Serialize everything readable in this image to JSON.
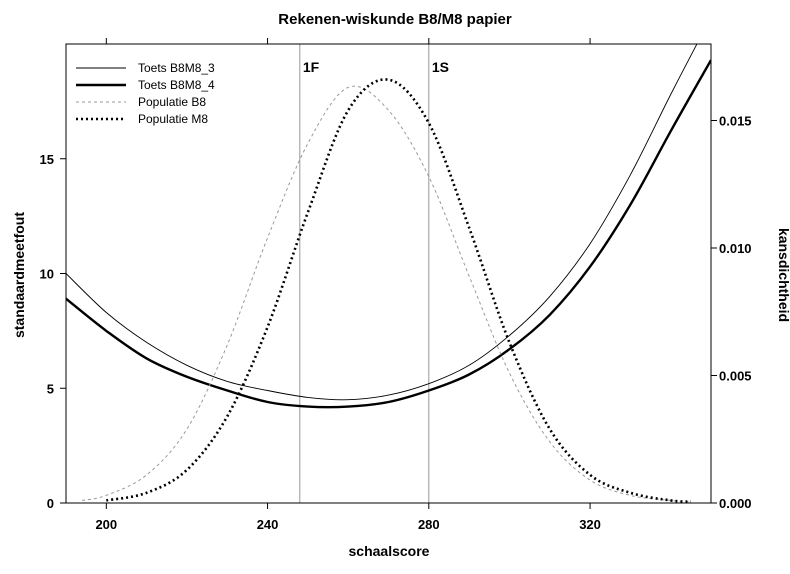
{
  "chart_data": {
    "type": "line",
    "title": "Rekenen-wiskunde B8/M8 papier",
    "xlabel": "schaalscore",
    "ylabel_left": "standaardmeetfout",
    "ylabel_right": "kansdichtheid",
    "xlim": [
      190,
      350
    ],
    "ylim_left": [
      0,
      20
    ],
    "ylim_right": [
      0,
      0.018
    ],
    "x_ticks": [
      200,
      240,
      280,
      320
    ],
    "x_tick_labels": [
      "200",
      "240",
      "280",
      "320"
    ],
    "y_left_ticks": [
      0,
      5,
      10,
      15
    ],
    "y_left_tick_labels": [
      "0",
      "5",
      "10",
      "15"
    ],
    "y_right_ticks": [
      0,
      0.005,
      0.01,
      0.015
    ],
    "y_right_tick_labels": [
      "0.000",
      "0.005",
      "0.010",
      "0.015"
    ],
    "grid": false,
    "legend_position": "top-left",
    "reference_lines": [
      {
        "x": 248,
        "label": "1F"
      },
      {
        "x": 280,
        "label": "1S"
      }
    ],
    "series": [
      {
        "name": "Toets B8M8_3",
        "axis": "left",
        "style": "thin-solid",
        "x": [
          190,
          200,
          210,
          220,
          230,
          240,
          250,
          260,
          270,
          280,
          290,
          300,
          310,
          320,
          330,
          340,
          348
        ],
        "y": [
          10.0,
          8.3,
          7.0,
          6.0,
          5.3,
          4.9,
          4.6,
          4.5,
          4.7,
          5.2,
          6.0,
          7.3,
          9.0,
          11.3,
          14.3,
          17.8,
          20.5
        ]
      },
      {
        "name": "Toets B8M8_4",
        "axis": "left",
        "style": "thick-solid",
        "x": [
          190,
          200,
          210,
          220,
          230,
          240,
          250,
          260,
          270,
          280,
          290,
          300,
          310,
          320,
          330,
          340,
          350
        ],
        "y": [
          8.9,
          7.5,
          6.3,
          5.5,
          4.9,
          4.4,
          4.2,
          4.2,
          4.4,
          4.9,
          5.6,
          6.7,
          8.2,
          10.3,
          13.0,
          16.2,
          19.3
        ]
      },
      {
        "name": "Populatie B8",
        "axis": "right",
        "style": "thin-dashed-gray",
        "x": [
          194,
          200,
          210,
          220,
          230,
          240,
          250,
          260,
          270,
          280,
          290,
          300,
          310,
          320,
          330,
          340,
          345
        ],
        "y": [
          0.0001,
          0.0003,
          0.0011,
          0.0029,
          0.0062,
          0.0104,
          0.0141,
          0.0163,
          0.0154,
          0.0128,
          0.0089,
          0.0051,
          0.0024,
          0.0009,
          0.0003,
          0.0001,
          5e-05
        ]
      },
      {
        "name": "Populatie M8",
        "axis": "right",
        "style": "thick-dotted",
        "x": [
          200,
          210,
          220,
          230,
          240,
          250,
          260,
          270,
          280,
          290,
          300,
          310,
          320,
          330,
          340,
          345
        ],
        "y": [
          0.0001,
          0.0004,
          0.0013,
          0.0034,
          0.0069,
          0.0114,
          0.0154,
          0.0166,
          0.0149,
          0.0108,
          0.0063,
          0.0029,
          0.0011,
          0.0004,
          0.0001,
          5e-05
        ]
      }
    ]
  }
}
